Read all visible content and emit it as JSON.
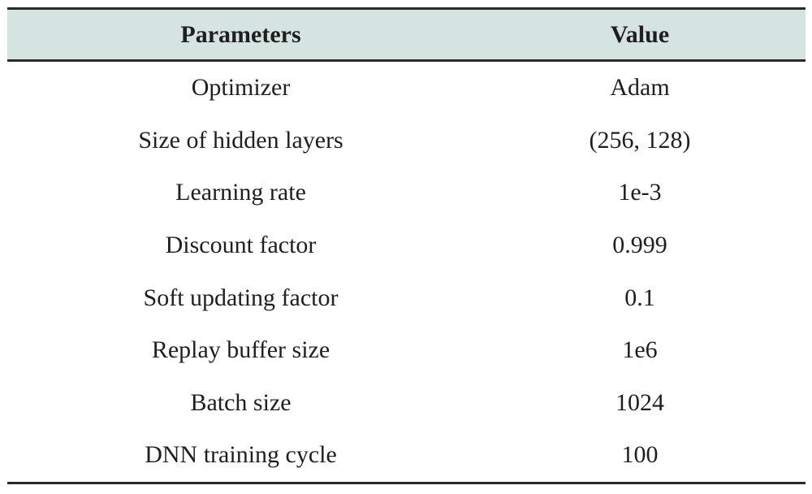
{
  "table": {
    "headers": [
      "Parameters",
      "Value"
    ],
    "rows": [
      {
        "parameter": "Optimizer",
        "value": "Adam"
      },
      {
        "parameter": "Size of hidden layers",
        "value": "(256, 128)"
      },
      {
        "parameter": "Learning rate",
        "value": "1e-3"
      },
      {
        "parameter": "Discount factor",
        "value": "0.999"
      },
      {
        "parameter": "Soft updating factor",
        "value": "0.1"
      },
      {
        "parameter": "Replay buffer size",
        "value": "1e6"
      },
      {
        "parameter": "Batch size",
        "value": "1024"
      },
      {
        "parameter": "DNN training cycle",
        "value": "100"
      }
    ]
  },
  "colors": {
    "header_background": "#d5e4e0",
    "rule_color": "#2a2a2a",
    "text_color": "#1f1f1f"
  }
}
